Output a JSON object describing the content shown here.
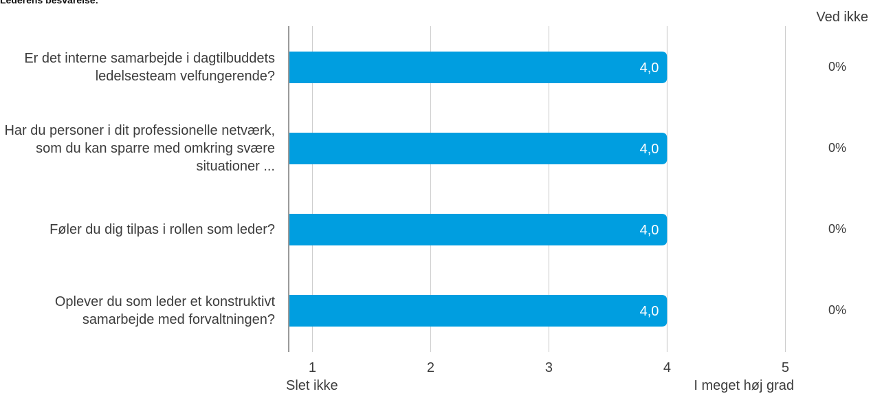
{
  "heading": "Lederens besvarelse:",
  "dont_know_header": "Ved ikke",
  "scale_low_label": "Slet ikke",
  "scale_high_label": "I meget høj grad",
  "colors": {
    "bar": "#009ee0",
    "grid": "#c8c8c8",
    "axis": "#9a9a9a",
    "bar_label": "#ffffff"
  },
  "chart_data": {
    "type": "bar",
    "orientation": "horizontal",
    "categories": [
      "Er det interne samarbejde i dagtilbuddets ledelsesteam velfungerende?",
      "Har du personer i dit professionelle netværk, som du kan sparre med omkring svære situationer ...",
      "Føler du dig tilpas i rollen som leder?",
      "Oplever du som leder et konstruktivt samarbejde med forvaltningen?"
    ],
    "values": [
      4.0,
      4.0,
      4.0,
      4.0
    ],
    "value_labels": [
      "4,0",
      "4,0",
      "4,0",
      "4,0"
    ],
    "dont_know": [
      "0%",
      "0%",
      "0%",
      "0%"
    ],
    "xlim": [
      0.8,
      5
    ],
    "xticks": [
      1,
      2,
      3,
      4,
      5
    ],
    "xtick_labels": [
      "1",
      "2",
      "3",
      "4",
      "5"
    ],
    "grid": true
  }
}
